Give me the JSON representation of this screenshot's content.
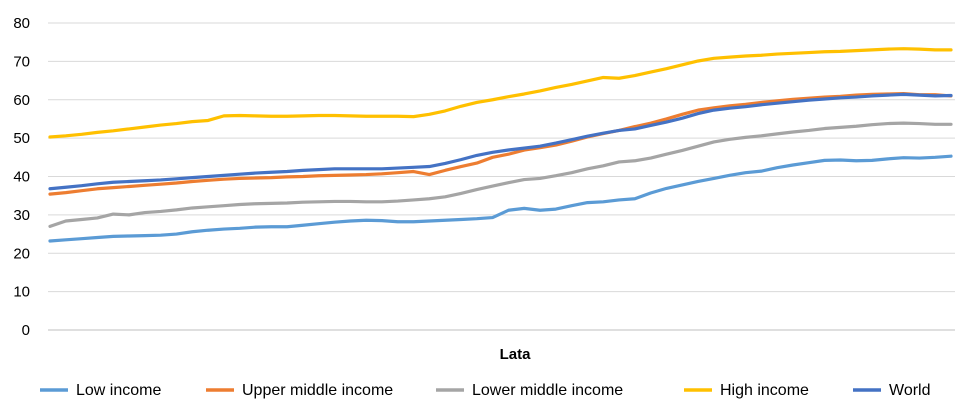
{
  "chart_data": {
    "type": "line",
    "title": "",
    "xlabel": "Lata",
    "ylabel": "",
    "ylim": [
      0,
      80
    ],
    "yticks": [
      0,
      10,
      20,
      30,
      40,
      50,
      60,
      70,
      80
    ],
    "grid": "horizontal",
    "legend_position": "bottom",
    "series": [
      {
        "name": "Low income",
        "color": "#5b9bd5",
        "values": [
          23.2,
          23.5,
          23.8,
          24.1,
          24.4,
          24.5,
          24.6,
          24.7,
          25.0,
          25.6,
          26.0,
          26.3,
          26.5,
          26.8,
          26.9,
          26.9,
          27.3,
          27.7,
          28.1,
          28.4,
          28.6,
          28.5,
          28.2,
          28.2,
          28.4,
          28.6,
          28.8,
          29.0,
          29.3,
          31.2,
          31.7,
          31.2,
          31.5,
          32.4,
          33.2,
          33.4,
          33.9,
          34.2,
          35.7,
          36.9,
          37.8,
          38.7,
          39.5,
          40.3,
          41.0,
          41.4,
          42.3,
          43.0,
          43.6,
          44.2,
          44.3,
          44.1,
          44.2,
          44.6,
          44.9,
          44.8,
          45.0,
          45.3
        ]
      },
      {
        "name": "Upper middle income",
        "color": "#ed7d31",
        "values": [
          35.4,
          35.8,
          36.3,
          36.8,
          37.1,
          37.4,
          37.7,
          38.0,
          38.3,
          38.7,
          39.0,
          39.3,
          39.5,
          39.6,
          39.7,
          39.9,
          40.0,
          40.2,
          40.3,
          40.4,
          40.5,
          40.7,
          41.0,
          41.3,
          40.5,
          41.6,
          42.6,
          43.5,
          45.0,
          45.8,
          46.9,
          47.5,
          48.2,
          49.2,
          50.3,
          51.2,
          52.0,
          53.0,
          53.9,
          55.0,
          56.2,
          57.3,
          57.9,
          58.4,
          58.8,
          59.3,
          59.7,
          60.1,
          60.4,
          60.7,
          60.9,
          61.2,
          61.4,
          61.5,
          61.6,
          61.3,
          61.3,
          61.0
        ]
      },
      {
        "name": "Lower middle income",
        "color": "#a5a5a5",
        "values": [
          27.0,
          28.4,
          28.8,
          29.2,
          30.2,
          30.0,
          30.6,
          30.9,
          31.3,
          31.8,
          32.1,
          32.4,
          32.7,
          32.9,
          33.0,
          33.1,
          33.3,
          33.4,
          33.5,
          33.5,
          33.4,
          33.4,
          33.6,
          33.9,
          34.2,
          34.7,
          35.6,
          36.6,
          37.5,
          38.4,
          39.2,
          39.5,
          40.2,
          41.0,
          42.0,
          42.8,
          43.8,
          44.1,
          44.8,
          45.8,
          46.8,
          47.9,
          49.0,
          49.7,
          50.2,
          50.6,
          51.1,
          51.6,
          52.0,
          52.5,
          52.8,
          53.1,
          53.5,
          53.8,
          53.9,
          53.8,
          53.6,
          53.6
        ]
      },
      {
        "name": "High income",
        "color": "#ffc000",
        "values": [
          50.3,
          50.6,
          51.0,
          51.5,
          51.9,
          52.4,
          52.9,
          53.4,
          53.8,
          54.3,
          54.6,
          55.8,
          55.9,
          55.8,
          55.7,
          55.7,
          55.8,
          55.9,
          55.9,
          55.8,
          55.7,
          55.7,
          55.7,
          55.6,
          56.2,
          57.1,
          58.3,
          59.3,
          60.0,
          60.8,
          61.5,
          62.3,
          63.2,
          64.0,
          64.9,
          65.8,
          65.6,
          66.3,
          67.2,
          68.1,
          69.1,
          70.1,
          70.8,
          71.1,
          71.4,
          71.6,
          71.9,
          72.1,
          72.3,
          72.5,
          72.6,
          72.8,
          73.0,
          73.2,
          73.3,
          73.2,
          73.0,
          73.0
        ]
      },
      {
        "name": "World",
        "color": "#4472c4",
        "values": [
          36.8,
          37.2,
          37.6,
          38.1,
          38.5,
          38.7,
          38.9,
          39.1,
          39.4,
          39.7,
          40.0,
          40.3,
          40.6,
          40.9,
          41.1,
          41.3,
          41.6,
          41.8,
          42.0,
          42.0,
          42.0,
          42.0,
          42.2,
          42.4,
          42.6,
          43.4,
          44.4,
          45.5,
          46.3,
          46.9,
          47.4,
          47.9,
          48.7,
          49.6,
          50.5,
          51.3,
          52.0,
          52.4,
          53.3,
          54.2,
          55.2,
          56.4,
          57.3,
          57.8,
          58.2,
          58.7,
          59.1,
          59.5,
          59.9,
          60.2,
          60.5,
          60.7,
          61.0,
          61.2,
          61.4,
          61.2,
          61.0,
          61.1
        ]
      }
    ]
  }
}
